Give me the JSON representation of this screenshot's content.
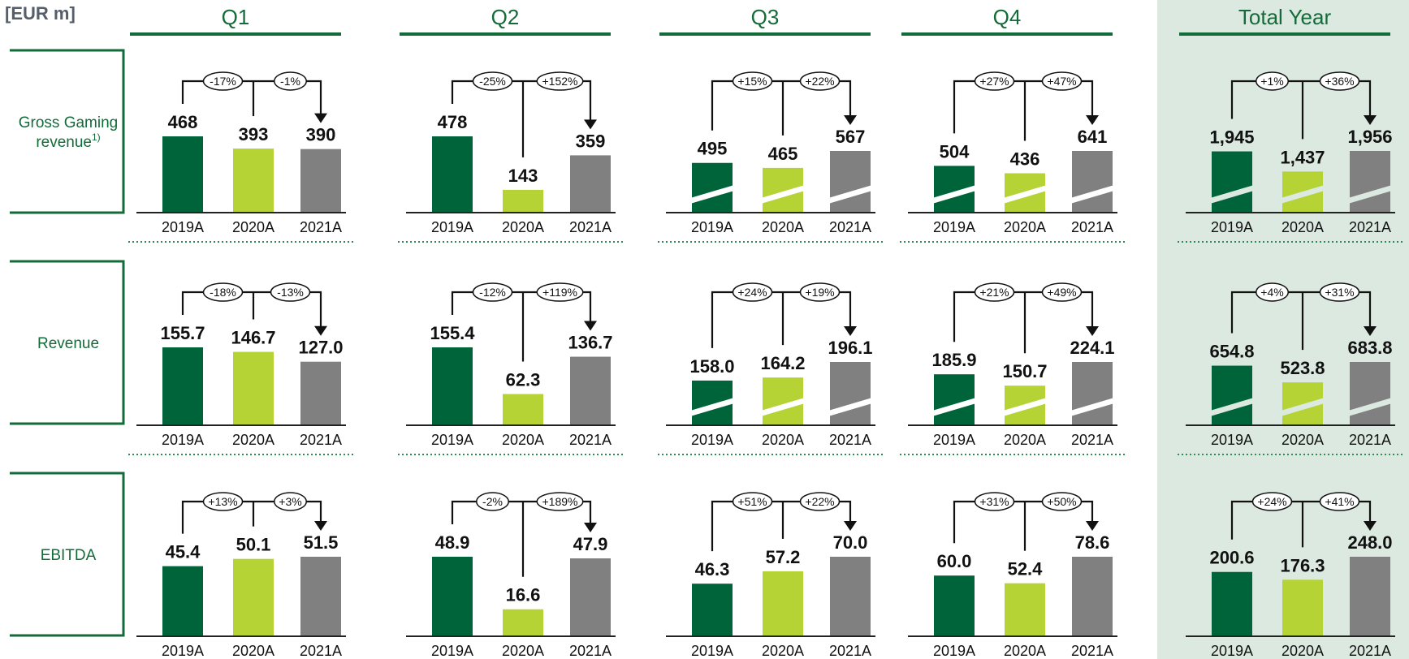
{
  "unit_label": "[EUR m]",
  "colors": {
    "accent_green": "#146b3a",
    "bar_2019": "#00643a",
    "bar_2020": "#b5d334",
    "bar_2021": "#808080",
    "total_panel_bg": "#dbe9e0",
    "dotted_divider": "#2e8b57"
  },
  "periods": [
    "Q1",
    "Q2",
    "Q3",
    "Q4",
    "Total Year"
  ],
  "years": [
    "2019A",
    "2020A",
    "2021A"
  ],
  "rows": [
    {
      "label_lines": [
        "Gross Gaming",
        "revenue"
      ],
      "label_superscript": "1)"
    },
    {
      "label_lines": [
        "Revenue"
      ],
      "label_superscript": ""
    },
    {
      "label_lines": [
        "EBITDA"
      ],
      "label_superscript": ""
    }
  ],
  "chart_data": [
    {
      "type": "bar",
      "metric": "Gross Gaming revenue",
      "period": "Q1",
      "categories": [
        "2019A",
        "2020A",
        "2021A"
      ],
      "values": [
        468,
        393,
        390
      ],
      "value_labels": [
        "468",
        "393",
        "390"
      ],
      "changes": [
        "-17%",
        "-1%"
      ],
      "broken_axis": false
    },
    {
      "type": "bar",
      "metric": "Gross Gaming revenue",
      "period": "Q2",
      "categories": [
        "2019A",
        "2020A",
        "2021A"
      ],
      "values": [
        478,
        143,
        359
      ],
      "value_labels": [
        "478",
        "143",
        "359"
      ],
      "changes": [
        "-25%",
        "+152%"
      ],
      "broken_axis": false
    },
    {
      "type": "bar",
      "metric": "Gross Gaming revenue",
      "period": "Q3",
      "categories": [
        "2019A",
        "2020A",
        "2021A"
      ],
      "values": [
        495,
        465,
        567
      ],
      "value_labels": [
        "495",
        "465",
        "567"
      ],
      "changes": [
        "+15%",
        "+22%"
      ],
      "broken_axis": true
    },
    {
      "type": "bar",
      "metric": "Gross Gaming revenue",
      "period": "Q4",
      "categories": [
        "2019A",
        "2020A",
        "2021A"
      ],
      "values": [
        504,
        436,
        641
      ],
      "value_labels": [
        "504",
        "436",
        "641"
      ],
      "changes": [
        "+27%",
        "+47%"
      ],
      "broken_axis": true
    },
    {
      "type": "bar",
      "metric": "Gross Gaming revenue",
      "period": "Total Year",
      "categories": [
        "2019A",
        "2020A",
        "2021A"
      ],
      "values": [
        1945,
        1437,
        1956
      ],
      "value_labels": [
        "1,945",
        "1,437",
        "1,956"
      ],
      "changes": [
        "+1%",
        "+36%"
      ],
      "broken_axis": true
    },
    {
      "type": "bar",
      "metric": "Revenue",
      "period": "Q1",
      "categories": [
        "2019A",
        "2020A",
        "2021A"
      ],
      "values": [
        155.7,
        146.7,
        127.0
      ],
      "value_labels": [
        "155.7",
        "146.7",
        "127.0"
      ],
      "changes": [
        "-18%",
        "-13%"
      ],
      "broken_axis": false
    },
    {
      "type": "bar",
      "metric": "Revenue",
      "period": "Q2",
      "categories": [
        "2019A",
        "2020A",
        "2021A"
      ],
      "values": [
        155.4,
        62.3,
        136.7
      ],
      "value_labels": [
        "155.4",
        "62.3",
        "136.7"
      ],
      "changes": [
        "-12%",
        "+119%"
      ],
      "broken_axis": false
    },
    {
      "type": "bar",
      "metric": "Revenue",
      "period": "Q3",
      "categories": [
        "2019A",
        "2020A",
        "2021A"
      ],
      "values": [
        158.0,
        164.2,
        196.1
      ],
      "value_labels": [
        "158.0",
        "164.2",
        "196.1"
      ],
      "changes": [
        "+24%",
        "+19%"
      ],
      "broken_axis": true
    },
    {
      "type": "bar",
      "metric": "Revenue",
      "period": "Q4",
      "categories": [
        "2019A",
        "2020A",
        "2021A"
      ],
      "values": [
        185.9,
        150.7,
        224.1
      ],
      "value_labels": [
        "185.9",
        "150.7",
        "224.1"
      ],
      "changes": [
        "+21%",
        "+49%"
      ],
      "broken_axis": true
    },
    {
      "type": "bar",
      "metric": "Revenue",
      "period": "Total Year",
      "categories": [
        "2019A",
        "2020A",
        "2021A"
      ],
      "values": [
        654.8,
        523.8,
        683.8
      ],
      "value_labels": [
        "654.8",
        "523.8",
        "683.8"
      ],
      "changes": [
        "+4%",
        "+31%"
      ],
      "broken_axis": true
    },
    {
      "type": "bar",
      "metric": "EBITDA",
      "period": "Q1",
      "categories": [
        "2019A",
        "2020A",
        "2021A"
      ],
      "values": [
        45.4,
        50.1,
        51.5
      ],
      "value_labels": [
        "45.4",
        "50.1",
        "51.5"
      ],
      "changes": [
        "+13%",
        "+3%"
      ],
      "broken_axis": false
    },
    {
      "type": "bar",
      "metric": "EBITDA",
      "period": "Q2",
      "categories": [
        "2019A",
        "2020A",
        "2021A"
      ],
      "values": [
        48.9,
        16.6,
        47.9
      ],
      "value_labels": [
        "48.9",
        "16.6",
        "47.9"
      ],
      "changes": [
        "-2%",
        "+189%"
      ],
      "broken_axis": false
    },
    {
      "type": "bar",
      "metric": "EBITDA",
      "period": "Q3",
      "categories": [
        "2019A",
        "2020A",
        "2021A"
      ],
      "values": [
        46.3,
        57.2,
        70.0
      ],
      "value_labels": [
        "46.3",
        "57.2",
        "70.0"
      ],
      "changes": [
        "+51%",
        "+22%"
      ],
      "broken_axis": false
    },
    {
      "type": "bar",
      "metric": "EBITDA",
      "period": "Q4",
      "categories": [
        "2019A",
        "2020A",
        "2021A"
      ],
      "values": [
        60.0,
        52.4,
        78.6
      ],
      "value_labels": [
        "60.0",
        "52.4",
        "78.6"
      ],
      "changes": [
        "+31%",
        "+50%"
      ],
      "broken_axis": false
    },
    {
      "type": "bar",
      "metric": "EBITDA",
      "period": "Total Year",
      "categories": [
        "2019A",
        "2020A",
        "2021A"
      ],
      "values": [
        200.6,
        176.3,
        248.0
      ],
      "value_labels": [
        "200.6",
        "176.3",
        "248.0"
      ],
      "changes": [
        "+24%",
        "+41%"
      ],
      "broken_axis": false
    }
  ]
}
